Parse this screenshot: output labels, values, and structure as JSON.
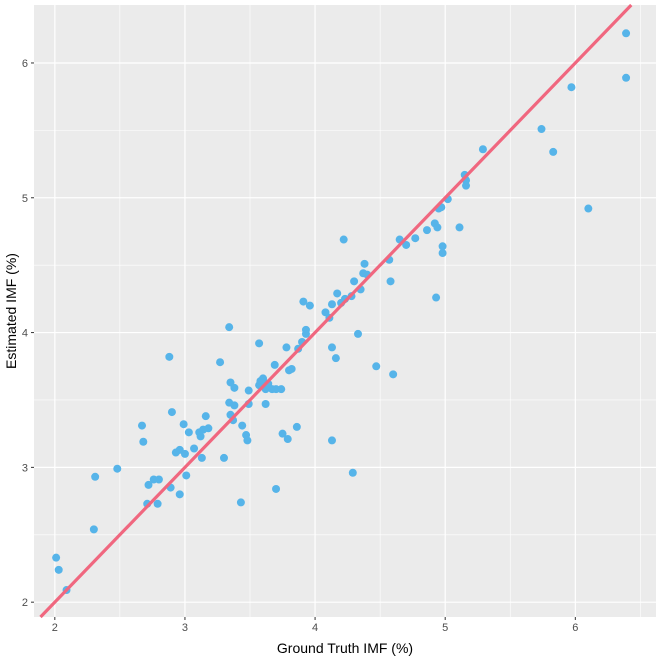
{
  "chart_data": {
    "type": "scatter",
    "title": "",
    "xlabel": "Ground Truth IMF (%)",
    "ylabel": "Estimated IMF (%)",
    "xlim": [
      1.84,
      6.62
    ],
    "ylim": [
      1.89,
      6.43
    ],
    "xticks": [
      2,
      3,
      4,
      5,
      6
    ],
    "yticks": [
      2,
      3,
      4,
      5,
      6
    ],
    "grid": true,
    "colors": {
      "panel": "#ebebeb",
      "grid_major": "#ffffff",
      "points": "#56b4e9",
      "fit_line": "#f0677f",
      "tick_text": "#4d4d4d"
    },
    "fit_line": {
      "slope": 1.0,
      "intercept": 0.0,
      "x_range": [
        1.84,
        6.62
      ]
    },
    "series": [
      {
        "name": "samples",
        "points": [
          [
            2.01,
            2.33
          ],
          [
            2.03,
            2.24
          ],
          [
            2.09,
            2.09
          ],
          [
            2.3,
            2.54
          ],
          [
            2.31,
            2.93
          ],
          [
            2.48,
            2.99
          ],
          [
            2.67,
            3.31
          ],
          [
            2.68,
            3.19
          ],
          [
            2.71,
            2.73
          ],
          [
            2.72,
            2.87
          ],
          [
            2.76,
            2.91
          ],
          [
            2.79,
            2.73
          ],
          [
            2.8,
            2.91
          ],
          [
            2.88,
            3.82
          ],
          [
            2.89,
            2.85
          ],
          [
            2.9,
            3.41
          ],
          [
            2.93,
            3.11
          ],
          [
            2.96,
            3.13
          ],
          [
            2.96,
            2.8
          ],
          [
            2.99,
            3.32
          ],
          [
            3.0,
            3.1
          ],
          [
            3.01,
            2.94
          ],
          [
            3.03,
            3.26
          ],
          [
            3.07,
            3.14
          ],
          [
            3.11,
            3.26
          ],
          [
            3.12,
            3.23
          ],
          [
            3.13,
            3.07
          ],
          [
            3.14,
            3.28
          ],
          [
            3.16,
            3.38
          ],
          [
            3.18,
            3.29
          ],
          [
            3.27,
            3.78
          ],
          [
            3.3,
            3.07
          ],
          [
            3.34,
            4.04
          ],
          [
            3.34,
            3.48
          ],
          [
            3.35,
            3.39
          ],
          [
            3.35,
            3.63
          ],
          [
            3.37,
            3.35
          ],
          [
            3.38,
            3.46
          ],
          [
            3.38,
            3.59
          ],
          [
            3.43,
            2.74
          ],
          [
            3.44,
            3.31
          ],
          [
            3.47,
            3.24
          ],
          [
            3.48,
            3.2
          ],
          [
            3.49,
            3.47
          ],
          [
            3.49,
            3.57
          ],
          [
            3.57,
            3.92
          ],
          [
            3.57,
            3.61
          ],
          [
            3.58,
            3.64
          ],
          [
            3.59,
            3.63
          ],
          [
            3.6,
            3.66
          ],
          [
            3.61,
            3.63
          ],
          [
            3.62,
            3.58
          ],
          [
            3.62,
            3.47
          ],
          [
            3.63,
            3.6
          ],
          [
            3.64,
            3.62
          ],
          [
            3.67,
            3.58
          ],
          [
            3.69,
            3.76
          ],
          [
            3.7,
            2.84
          ],
          [
            3.7,
            3.58
          ],
          [
            3.74,
            3.58
          ],
          [
            3.75,
            3.25
          ],
          [
            3.78,
            3.89
          ],
          [
            3.79,
            3.21
          ],
          [
            3.8,
            3.72
          ],
          [
            3.82,
            3.73
          ],
          [
            3.86,
            3.3
          ],
          [
            3.87,
            3.88
          ],
          [
            3.9,
            3.93
          ],
          [
            3.91,
            4.23
          ],
          [
            3.93,
            4.02
          ],
          [
            3.93,
            3.99
          ],
          [
            3.96,
            4.2
          ],
          [
            4.08,
            4.15
          ],
          [
            4.11,
            4.11
          ],
          [
            4.13,
            4.21
          ],
          [
            4.13,
            3.89
          ],
          [
            4.13,
            3.2
          ],
          [
            4.16,
            3.81
          ],
          [
            4.17,
            4.29
          ],
          [
            4.2,
            4.22
          ],
          [
            4.22,
            4.69
          ],
          [
            4.23,
            4.25
          ],
          [
            4.28,
            4.27
          ],
          [
            4.3,
            4.38
          ],
          [
            4.29,
            2.96
          ],
          [
            4.33,
            3.99
          ],
          [
            4.35,
            4.32
          ],
          [
            4.37,
            4.44
          ],
          [
            4.38,
            4.51
          ],
          [
            4.4,
            4.43
          ],
          [
            4.47,
            3.75
          ],
          [
            4.57,
            4.54
          ],
          [
            4.58,
            4.38
          ],
          [
            4.6,
            3.69
          ],
          [
            4.65,
            4.69
          ],
          [
            4.7,
            4.65
          ],
          [
            4.77,
            4.7
          ],
          [
            4.86,
            4.76
          ],
          [
            4.92,
            4.81
          ],
          [
            4.93,
            4.26
          ],
          [
            4.94,
            4.78
          ],
          [
            4.95,
            4.92
          ],
          [
            4.97,
            4.93
          ],
          [
            4.98,
            4.59
          ],
          [
            4.98,
            4.64
          ],
          [
            5.02,
            4.99
          ],
          [
            5.11,
            4.78
          ],
          [
            5.15,
            5.17
          ],
          [
            5.16,
            5.13
          ],
          [
            5.16,
            5.09
          ],
          [
            5.29,
            5.36
          ],
          [
            5.74,
            5.51
          ],
          [
            5.83,
            5.34
          ],
          [
            5.97,
            5.82
          ],
          [
            6.1,
            4.92
          ],
          [
            6.39,
            6.22
          ],
          [
            6.39,
            5.89
          ]
        ]
      }
    ]
  }
}
